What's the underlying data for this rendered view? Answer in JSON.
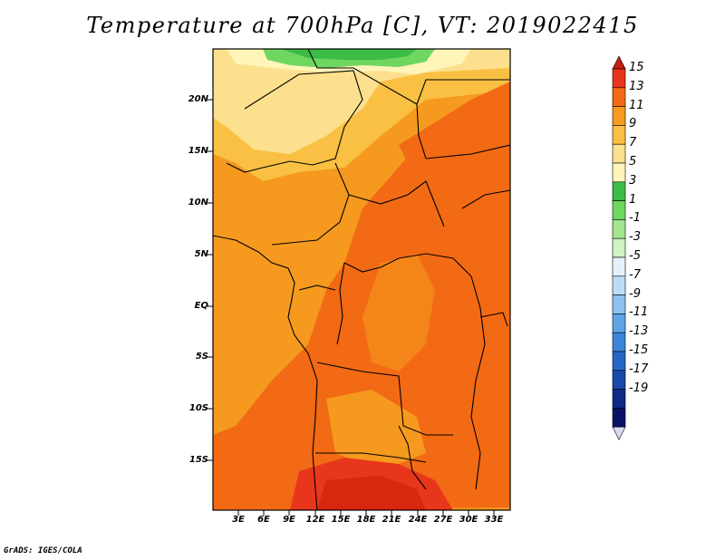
{
  "title": "Temperature at 700hPa [C], VT: 2019022415",
  "credit": "GrADS: IGES/COLA",
  "map": {
    "variable": "Temperature at 700hPa",
    "units": "C",
    "valid_time": "2019022415",
    "lat_range": [
      -20,
      24
    ],
    "lon_range": [
      0,
      35
    ],
    "lat_ticks": [
      "20N",
      "15N",
      "10N",
      "5N",
      "EQ",
      "5S",
      "10S",
      "15S"
    ],
    "lon_ticks": [
      "3E",
      "6E",
      "9E",
      "12E",
      "15E",
      "18E",
      "21E",
      "24E",
      "27E",
      "30E",
      "33E"
    ]
  },
  "colorbar": {
    "labels": [
      "15",
      "13",
      "11",
      "9",
      "7",
      "5",
      "3",
      "1",
      "-1",
      "-3",
      "-5",
      "-7",
      "-9",
      "-11",
      "-13",
      "-15",
      "-17",
      "-19"
    ],
    "colors": [
      "#e8361c",
      "#f26a14",
      "#f59a1e",
      "#f9c043",
      "#fde08d",
      "#fff5b8",
      "#3dbb47",
      "#6fd65f",
      "#a2e68f",
      "#d0f2c4",
      "#e4f1fb",
      "#bcdcf6",
      "#8dc2ee",
      "#5ea4e6",
      "#3b86dc",
      "#2566c9",
      "#1848a8",
      "#0d2a86",
      "#0a1166"
    ],
    "extend_top_color": "#c81e10",
    "extend_bottom_color": "#d8d8f0"
  }
}
